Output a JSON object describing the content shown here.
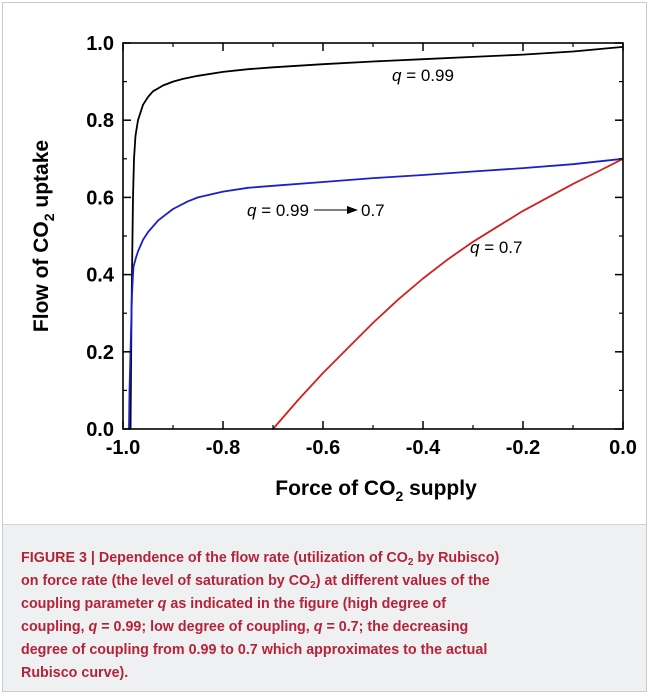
{
  "chart_data": {
    "type": "line",
    "xlabel_parts": {
      "pre": "Force of CO",
      "sub": "2",
      "post": " supply"
    },
    "ylabel_parts": {
      "pre": "Flow of CO",
      "sub": "2",
      "post": " uptake"
    },
    "xlim": [
      -1.0,
      0.0
    ],
    "ylim": [
      0.0,
      1.0
    ],
    "xticks": [
      "-1.0",
      "-0.8",
      "-0.6",
      "-0.4",
      "-0.2",
      "0.0"
    ],
    "yticks": [
      "0.0",
      "0.2",
      "0.4",
      "0.6",
      "0.8",
      "1.0"
    ],
    "xtick_values": [
      -1.0,
      -0.8,
      -0.6,
      -0.4,
      -0.2,
      0.0
    ],
    "ytick_values": [
      0.0,
      0.2,
      0.4,
      0.6,
      0.8,
      1.0
    ],
    "grid": false,
    "series": [
      {
        "color": "#000000",
        "x": [
          -0.985,
          -0.983,
          -0.98,
          -0.978,
          -0.975,
          -0.97,
          -0.965,
          -0.96,
          -0.95,
          -0.94,
          -0.92,
          -0.9,
          -0.88,
          -0.85,
          -0.8,
          -0.75,
          -0.7,
          -0.6,
          -0.5,
          -0.4,
          -0.3,
          -0.2,
          -0.1,
          0.0
        ],
        "y": [
          0.0,
          0.3,
          0.6,
          0.7,
          0.76,
          0.8,
          0.82,
          0.84,
          0.86,
          0.875,
          0.89,
          0.9,
          0.907,
          0.915,
          0.925,
          0.932,
          0.937,
          0.945,
          0.952,
          0.958,
          0.964,
          0.97,
          0.978,
          0.99
        ]
      },
      {
        "color": "#1f1fc8",
        "x": [
          -0.988,
          -0.987,
          -0.985,
          -0.983,
          -0.982,
          -0.98,
          -0.979,
          -0.975,
          -0.97,
          -0.96,
          -0.95,
          -0.93,
          -0.9,
          -0.87,
          -0.85,
          -0.8,
          -0.75,
          -0.7,
          -0.6,
          -0.5,
          -0.4,
          -0.3,
          -0.2,
          -0.1,
          0.0
        ],
        "y": [
          0.0,
          0.1,
          0.2,
          0.3,
          0.35,
          0.4,
          0.42,
          0.44,
          0.46,
          0.49,
          0.51,
          0.54,
          0.57,
          0.59,
          0.6,
          0.615,
          0.625,
          0.63,
          0.64,
          0.65,
          0.658,
          0.667,
          0.676,
          0.686,
          0.7
        ]
      },
      {
        "color": "#d41f1f",
        "x": [
          -0.7,
          -0.65,
          -0.6,
          -0.55,
          -0.5,
          -0.45,
          -0.4,
          -0.35,
          -0.3,
          -0.25,
          -0.2,
          -0.15,
          -0.1,
          -0.05,
          0.0
        ],
        "y": [
          0.0,
          0.075,
          0.145,
          0.21,
          0.275,
          0.335,
          0.39,
          0.44,
          0.485,
          0.525,
          0.565,
          0.6,
          0.635,
          0.667,
          0.7
        ]
      }
    ],
    "annotations": [
      {
        "q": "q",
        "text": " = 0.99"
      },
      {
        "q": "q",
        "text": " = 0.99"
      },
      {
        "q": "",
        "text": "0.7"
      },
      {
        "q": "q",
        "text": " = 0.7"
      }
    ]
  },
  "caption": {
    "figure_label": "FIGURE 3 | ",
    "line1_pre": "Dependence of the flow rate (utilization of CO",
    "line1_sub": "2",
    "line1_post": " by Rubisco)",
    "line2_pre": "on force rate (the level of saturation by CO",
    "line2_sub": "2",
    "line2_post": ") at different values of the",
    "line3_pre": "coupling parameter ",
    "q_symbol": "q",
    "line3_post": " as indicated in the figure (high degree of",
    "line4_pre": "coupling, ",
    "line4_mid": " = 0.99; low degree of coupling, ",
    "line4_post": " = 0.7; the decreasing",
    "line5": "degree of coupling from 0.99 to 0.7 which approximates to the actual",
    "line6": "Rubisco curve)."
  }
}
